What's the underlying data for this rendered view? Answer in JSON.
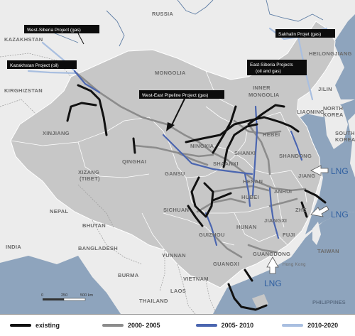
{
  "callouts": {
    "west_siberia": "West-Siberia Project (gas)",
    "kazakhstan": "Kazakhstan Project (oil)",
    "west_east": "West-East Pipeline Project (gas)",
    "sakhalin": "Sakhalin Projet (gas)",
    "east_siberia_1": "East-Siberia Projects",
    "east_siberia_2": "(oil and gas)"
  },
  "countries": {
    "russia": "RUSSIA",
    "kazakhstan": "KAZAKHSTAN",
    "kirghizstan": "KIRGHIZSTAN",
    "mongolia": "MONGOLIA",
    "inner_mongolia_1": "INNER",
    "inner_mongolia_2": "MONGOLIA",
    "heilongjiang": "HEILONGJIANG",
    "jilin": "JILIN",
    "north_korea_1": "NORTH",
    "north_korea_2": "KOREA",
    "south_korea_1": "SOUTH",
    "south_korea_2": "KOREA",
    "nepal": "NEPAL",
    "bhutan": "BHUTAN",
    "bangladesh": "BANGLADESH",
    "india": "INDIA",
    "burma": "BURMA",
    "vietnam": "VIETNAM",
    "laos": "LAOS",
    "thailand": "THAILAND",
    "philippines": "PHILIPPINES",
    "taiwan": "TAIWAN"
  },
  "provinces": {
    "xinjiang": "XINJIANG",
    "qinghai": "QINGHAI",
    "xizang": "XIZANG",
    "tibet": "(TIBET)",
    "gansu": "GANSU",
    "ningxia": "NINGXIA",
    "shaanxi": "SHAANXI",
    "shanxi": "SHANXI",
    "hebei": "HEBEI",
    "shandong": "SHANDONG",
    "henan": "HENAN",
    "jiangsu": "JIANG",
    "anhui": "ANHUI",
    "hubei": "HUBEI",
    "zhejiang": "ZHE",
    "sichuan": "SICHUAN",
    "hunan": "HUNAN",
    "jiangxi": "JIANGXI",
    "fujian": "FUJI",
    "guizhou": "GUIZHOU",
    "yunnan": "YUNNAN",
    "guangxi": "GUANGXI",
    "guangdong": "GUANGDONG",
    "hong_kong": "Hong Kong",
    "liaoning": "LIAONING"
  },
  "lng_labels": [
    "LNG",
    "LNG",
    "LNG"
  ],
  "scale": {
    "zero": "0",
    "mid": "250",
    "end": "500 km"
  },
  "legend": {
    "items": [
      {
        "label": "existing",
        "color": "#111111"
      },
      {
        "label": "2000- 2005",
        "color": "#8c8c8c"
      },
      {
        "label": "2005- 2010",
        "color": "#4b66b0"
      },
      {
        "label": "2010-2020",
        "color": "#a9bfe0"
      }
    ]
  },
  "colors": {
    "sea": "#8ea4bd",
    "land_foreign": "#ececec",
    "china": "#c7c7c7",
    "existing": "#111111",
    "p2000": "#8c8c8c",
    "p2005": "#4b66b0",
    "p2010": "#a9bfe0"
  }
}
